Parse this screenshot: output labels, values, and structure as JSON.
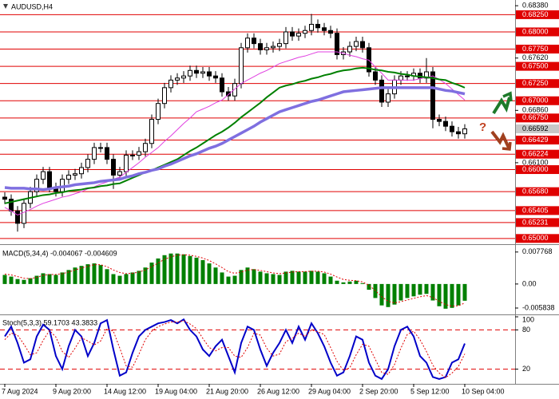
{
  "chart_data": [
    {
      "type": "candlestick",
      "title": "AUDUSD,H4",
      "annotation": "?",
      "categories": [
        "7 Aug 2024",
        null,
        null,
        null,
        null,
        null,
        null,
        null,
        "9 Aug 20:00",
        null,
        null,
        null,
        null,
        null,
        null,
        null,
        "14 Aug 12:00",
        null,
        null,
        null,
        null,
        null,
        null,
        null,
        "19 Aug 04:00",
        null,
        null,
        null,
        null,
        null,
        null,
        null,
        "21 Aug 20:00",
        null,
        null,
        null,
        null,
        null,
        null,
        null,
        "26 Aug 12:00",
        null,
        null,
        null,
        null,
        null,
        null,
        null,
        "29 Aug 04:00",
        null,
        null,
        null,
        null,
        null,
        null,
        null,
        "2 Sep 20:00",
        null,
        null,
        null,
        null,
        null,
        null,
        null,
        "5 Sep 12:00",
        null,
        null,
        null,
        null,
        null,
        null,
        null,
        "10 Sep 04:00"
      ],
      "open": [
        0.656,
        0.6557,
        0.654,
        0.6522,
        0.6551,
        0.6568,
        0.6586,
        0.6597,
        0.6574,
        0.6568,
        0.6586,
        0.6592,
        0.6594,
        0.6603,
        0.6615,
        0.6632,
        0.6632,
        0.6615,
        0.6592,
        0.6597,
        0.6621,
        0.6621,
        0.6626,
        0.6638,
        0.6673,
        0.6696,
        0.6719,
        0.673,
        0.6733,
        0.6736,
        0.6744,
        0.674,
        0.6742,
        0.6736,
        0.6733,
        0.6713,
        0.6707,
        0.6725,
        0.6777,
        0.6791,
        0.6783,
        0.6774,
        0.6777,
        0.6779,
        0.6783,
        0.68,
        0.6794,
        0.6798,
        0.6802,
        0.6811,
        0.6806,
        0.6802,
        0.6798,
        0.6767,
        0.6771,
        0.6779,
        0.6786,
        0.6777,
        0.6742,
        0.673,
        0.6698,
        0.671,
        0.673,
        0.6736,
        0.6736,
        0.674,
        0.6733,
        0.6742,
        0.6673,
        0.667,
        0.6663,
        0.6655,
        0.6652
      ],
      "high": [
        0.6567,
        0.6564,
        0.6547,
        0.6558,
        0.6575,
        0.6593,
        0.6604,
        0.6604,
        0.6581,
        0.6593,
        0.6599,
        0.6601,
        0.661,
        0.6622,
        0.6639,
        0.6639,
        0.6639,
        0.6622,
        0.6604,
        0.6628,
        0.6628,
        0.6633,
        0.6645,
        0.668,
        0.6703,
        0.6726,
        0.6737,
        0.674,
        0.6743,
        0.6751,
        0.6751,
        0.6749,
        0.6749,
        0.6743,
        0.674,
        0.672,
        0.6732,
        0.6784,
        0.6798,
        0.6798,
        0.679,
        0.6784,
        0.6786,
        0.679,
        0.6807,
        0.6807,
        0.6805,
        0.6809,
        0.6826,
        0.6818,
        0.6813,
        0.6809,
        0.6805,
        0.6778,
        0.6786,
        0.6793,
        0.6793,
        0.6784,
        0.6749,
        0.6737,
        0.6717,
        0.6737,
        0.6743,
        0.6743,
        0.6747,
        0.6747,
        0.6762,
        0.6749,
        0.668,
        0.6677,
        0.667,
        0.6662,
        0.6666
      ],
      "low": [
        0.655,
        0.6533,
        0.651,
        0.6515,
        0.6544,
        0.6561,
        0.6579,
        0.6567,
        0.6561,
        0.6561,
        0.6579,
        0.6585,
        0.6587,
        0.6596,
        0.6608,
        0.6625,
        0.6608,
        0.6572,
        0.6585,
        0.659,
        0.6614,
        0.6614,
        0.6619,
        0.6631,
        0.6666,
        0.6689,
        0.6712,
        0.6723,
        0.6726,
        0.6729,
        0.6733,
        0.6733,
        0.6729,
        0.6726,
        0.6706,
        0.67,
        0.67,
        0.6718,
        0.677,
        0.6776,
        0.6767,
        0.6767,
        0.677,
        0.6772,
        0.6776,
        0.6787,
        0.6787,
        0.6791,
        0.6795,
        0.6799,
        0.6795,
        0.6791,
        0.676,
        0.676,
        0.6764,
        0.6772,
        0.677,
        0.6735,
        0.6723,
        0.6691,
        0.6691,
        0.6703,
        0.6723,
        0.6729,
        0.6729,
        0.6726,
        0.6726,
        0.666,
        0.6663,
        0.6656,
        0.6648,
        0.6645,
        0.6645
      ],
      "close": [
        0.6557,
        0.654,
        0.6522,
        0.6551,
        0.6568,
        0.6586,
        0.6597,
        0.6574,
        0.6568,
        0.6586,
        0.6592,
        0.6594,
        0.6603,
        0.6615,
        0.6632,
        0.6632,
        0.6615,
        0.6592,
        0.6597,
        0.6621,
        0.6621,
        0.6626,
        0.6638,
        0.6673,
        0.6696,
        0.6719,
        0.673,
        0.6733,
        0.6736,
        0.6744,
        0.674,
        0.6742,
        0.6736,
        0.6733,
        0.6713,
        0.6707,
        0.6725,
        0.6777,
        0.6791,
        0.6783,
        0.6774,
        0.6777,
        0.6779,
        0.6783,
        0.68,
        0.6794,
        0.6798,
        0.6802,
        0.6811,
        0.6806,
        0.6802,
        0.6798,
        0.6767,
        0.6771,
        0.6779,
        0.6786,
        0.6777,
        0.6742,
        0.673,
        0.6698,
        0.671,
        0.673,
        0.6736,
        0.6736,
        0.674,
        0.6733,
        0.6742,
        0.6673,
        0.667,
        0.6663,
        0.6655,
        0.6652,
        0.66592
      ],
      "up_color": "#ffffff",
      "down_color": "#000000",
      "series": [
        {
          "color": "#e040e0",
          "values": [
            0.6545,
            0.654,
            0.6534,
            0.6538,
            0.6542,
            0.6547,
            0.6551,
            0.6554,
            0.6557,
            0.656,
            0.6562,
            0.6565,
            0.6568,
            0.6572,
            0.6575,
            0.6579,
            0.6582,
            0.6586,
            0.6589,
            0.6596,
            0.6603,
            0.661,
            0.6618,
            0.6625,
            0.6632,
            0.6641,
            0.6649,
            0.6658,
            0.6667,
            0.6675,
            0.6684,
            0.6688,
            0.6692,
            0.6697,
            0.6701,
            0.6709,
            0.6717,
            0.6725,
            0.673,
            0.6735,
            0.674,
            0.6744,
            0.6749,
            0.6754,
            0.6757,
            0.676,
            0.6763,
            0.6765,
            0.6768,
            0.6771,
            0.6771,
            0.6771,
            0.6771,
            0.6769,
            0.6766,
            0.6764,
            0.6761,
            0.6759,
            0.6749,
            0.674,
            0.673,
            0.673,
            0.673,
            0.673,
            0.673,
            0.6732,
            0.6734,
            0.6736,
            0.6731,
            0.6725,
            0.6717,
            0.6709,
            0.6701
          ]
        },
        {
          "color": "#008000",
          "values": [
            0.6551,
            0.6553,
            0.6555,
            0.6557,
            0.6559,
            0.6561,
            0.6563,
            0.6564,
            0.6566,
            0.6567,
            0.6569,
            0.657,
            0.6571,
            0.6573,
            0.6574,
            0.6576,
            0.6577,
            0.6579,
            0.658,
            0.6584,
            0.6588,
            0.6592,
            0.6596,
            0.6599,
            0.6603,
            0.6607,
            0.6611,
            0.6615,
            0.6621,
            0.6627,
            0.6632,
            0.6638,
            0.6644,
            0.665,
            0.6655,
            0.6661,
            0.6668,
            0.6676,
            0.6683,
            0.669,
            0.6697,
            0.6705,
            0.6712,
            0.6719,
            0.6722,
            0.6724,
            0.6727,
            0.6729,
            0.6732,
            0.6734,
            0.6737,
            0.6739,
            0.6742,
            0.6744,
            0.6745,
            0.6747,
            0.6748,
            0.6747,
            0.6745,
            0.6744,
            0.6742,
            0.6741,
            0.6739,
            0.6738,
            0.6736,
            0.6735,
            0.6734,
            0.6733,
            0.6731,
            0.673,
            0.6726,
            0.6723,
            0.6719
          ]
        },
        {
          "color": "#7f6fe0",
          "values": [
            0.6574,
            0.6573,
            0.6573,
            0.6573,
            0.6572,
            0.6572,
            0.6571,
            0.6572,
            0.6574,
            0.6575,
            0.6576,
            0.6578,
            0.6579,
            0.658,
            0.6581,
            0.6583,
            0.6584,
            0.6585,
            0.6586,
            0.6589,
            0.6591,
            0.6594,
            0.6596,
            0.6599,
            0.6601,
            0.6605,
            0.6608,
            0.6612,
            0.6616,
            0.662,
            0.6623,
            0.6627,
            0.6631,
            0.6634,
            0.6638,
            0.6643,
            0.6648,
            0.6653,
            0.6658,
            0.6663,
            0.6669,
            0.6674,
            0.6679,
            0.6684,
            0.6687,
            0.669,
            0.6693,
            0.6696,
            0.6699,
            0.6701,
            0.6704,
            0.6707,
            0.671,
            0.6713,
            0.6714,
            0.6715,
            0.6716,
            0.6717,
            0.6718,
            0.6719,
            0.6719,
            0.6719,
            0.6719,
            0.6719,
            0.6719,
            0.6719,
            0.6719,
            0.6719,
            0.6717,
            0.6715,
            0.6714,
            0.6712,
            0.671
          ]
        }
      ],
      "ylim": [
        0.6494,
        0.6844
      ],
      "yticks": [
        {
          "value": 0.6838,
          "label": "0.68380"
        },
        {
          "value": 0.6762,
          "label": "0.67620"
        },
        {
          "value": 0.6686,
          "label": "0.66860"
        },
        {
          "value": 0.661,
          "label": "0.66100"
        }
      ],
      "levels": [
        {
          "value": 0.6825,
          "label": "0.68250"
        },
        {
          "value": 0.68,
          "label": "0.68000"
        },
        {
          "value": 0.6775,
          "label": "0.67750"
        },
        {
          "value": 0.675,
          "label": "0.67500"
        },
        {
          "value": 0.6725,
          "label": "0.67250"
        },
        {
          "value": 0.67,
          "label": "0.67000"
        },
        {
          "value": 0.6675,
          "label": "0.66750"
        },
        0.66429,
        0.66224,
        {
          "value": 0.66,
          "label": "0.66000"
        },
        {
          "value": 0.6568,
          "label": "0.65680"
        },
        0.65405,
        0.65231,
        {
          "value": 0.65,
          "label": "0.65000"
        }
      ],
      "level_color": "#e00000",
      "level_style": "solid",
      "grid": false
    },
    {
      "type": "macd",
      "title": "MACD(5,34,4) -0.004067 -0.004609",
      "series": [
        {
          "color": "#008000",
          "style": "bars",
          "values": [
            0.0022,
            0.0018,
            0.0012,
            0.001,
            0.0014,
            0.002,
            0.0026,
            0.0024,
            0.0022,
            0.0028,
            0.0034,
            0.004,
            0.0044,
            0.0048,
            0.005,
            0.0046,
            0.0036,
            0.0024,
            0.002,
            0.0024,
            0.0028,
            0.0032,
            0.004,
            0.0052,
            0.0062,
            0.007,
            0.0074,
            0.0074,
            0.0072,
            0.0068,
            0.0064,
            0.0058,
            0.005,
            0.004,
            0.0028,
            0.0018,
            0.002,
            0.0034,
            0.004,
            0.0036,
            0.003,
            0.0026,
            0.0024,
            0.0022,
            0.003,
            0.0032,
            0.003,
            0.003,
            0.0032,
            0.003,
            0.0026,
            0.0018,
            0.0008,
            0.0004,
            0.0006,
            0.0008,
            0.0002,
            -0.0014,
            -0.0034,
            -0.0052,
            -0.0056,
            -0.005,
            -0.004,
            -0.0034,
            -0.003,
            -0.0026,
            -0.0024,
            -0.004,
            -0.0054,
            -0.006,
            -0.0058,
            -0.0052,
            -0.004067
          ]
        },
        {
          "color": "#e00000",
          "style": "dotted",
          "values": [
            0.0024,
            0.0022,
            0.0018,
            0.0014,
            0.0013,
            0.0016,
            0.0021,
            0.0023,
            0.0023,
            0.0025,
            0.0029,
            0.0034,
            0.0039,
            0.0043,
            0.0047,
            0.0047,
            0.0042,
            0.0034,
            0.0028,
            0.0025,
            0.0026,
            0.0029,
            0.0034,
            0.0042,
            0.0051,
            0.006,
            0.0066,
            0.007,
            0.0071,
            0.007,
            0.0067,
            0.0063,
            0.0057,
            0.0049,
            0.004,
            0.003,
            0.0026,
            0.0029,
            0.0034,
            0.0035,
            0.0033,
            0.003,
            0.0027,
            0.0025,
            0.0027,
            0.0029,
            0.003,
            0.003,
            0.0031,
            0.0031,
            0.0029,
            0.0024,
            0.0017,
            0.0011,
            0.0009,
            0.0008,
            0.0005,
            -0.0003,
            -0.0016,
            -0.0031,
            -0.0042,
            -0.0046,
            -0.0043,
            -0.0039,
            -0.0035,
            -0.0031,
            -0.0028,
            -0.0033,
            -0.0042,
            -0.005,
            -0.0054,
            -0.0053,
            -0.004609
          ]
        }
      ],
      "ylim": [
        -0.007,
        0.0087
      ],
      "yticks": [
        0.007768,
        {
          "value": 0,
          "label": "0.00"
        },
        -0.005838
      ]
    },
    {
      "type": "line",
      "title": "Stoch(5,3,3) 59.1703 43.3833",
      "series": [
        {
          "color": "#0000c8",
          "style": "solid",
          "values": [
            70,
            85,
            60,
            30,
            35,
            70,
            88,
            80,
            40,
            20,
            55,
            80,
            70,
            40,
            60,
            90,
            95,
            50,
            10,
            15,
            45,
            70,
            80,
            85,
            90,
            92,
            95,
            90,
            96,
            80,
            70,
            50,
            40,
            55,
            65,
            40,
            15,
            60,
            85,
            80,
            50,
            25,
            45,
            60,
            80,
            60,
            85,
            65,
            90,
            75,
            55,
            30,
            10,
            15,
            40,
            70,
            65,
            30,
            10,
            5,
            20,
            55,
            80,
            85,
            70,
            40,
            30,
            8,
            5,
            8,
            30,
            35,
            59.1703
          ]
        },
        {
          "color": "#e00000",
          "style": "dotted",
          "values": [
            65,
            75,
            72,
            58,
            42,
            45,
            64,
            79,
            69,
            47,
            38,
            52,
            68,
            63,
            57,
            63,
            82,
            78,
            52,
            25,
            23,
            43,
            65,
            78,
            85,
            89,
            92,
            92,
            94,
            89,
            82,
            67,
            53,
            48,
            53,
            53,
            40,
            38,
            53,
            75,
            72,
            52,
            40,
            43,
            62,
            67,
            75,
            70,
            80,
            77,
            73,
            53,
            32,
            18,
            22,
            42,
            58,
            55,
            35,
            15,
            12,
            27,
            52,
            73,
            78,
            65,
            47,
            26,
            14,
            7,
            14,
            24,
            43.3833
          ]
        }
      ],
      "ylim": [
        0,
        100
      ],
      "yticks": [
        100
      ],
      "levels": [
        80,
        20
      ],
      "level_color": "#e00000",
      "level_style": "dashed"
    }
  ]
}
